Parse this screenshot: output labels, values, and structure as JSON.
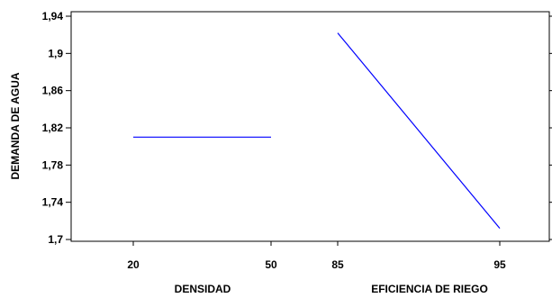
{
  "chart_data": {
    "type": "line",
    "ylabel": "DEMANDA DE AGUA",
    "ylim": [
      1.7,
      1.94
    ],
    "yticks": [
      "1,7",
      "1,74",
      "1,78",
      "1,82",
      "1,86",
      "1,9",
      "1,94"
    ],
    "ytick_values": [
      1.7,
      1.74,
      1.78,
      1.82,
      1.86,
      1.9,
      1.94
    ],
    "grid": false,
    "line_color": "#0000ff",
    "panels": [
      {
        "xlabel": "DENSIDAD",
        "xticks": [
          "20",
          "50"
        ],
        "series": [
          {
            "x": [
              20,
              50
            ],
            "y": [
              1.81,
              1.81
            ]
          }
        ]
      },
      {
        "xlabel": "EFICIENCIA DE RIEGO",
        "xticks": [
          "85",
          "95"
        ],
        "series": [
          {
            "x": [
              85,
              95
            ],
            "y": [
              1.922,
              1.712
            ]
          }
        ]
      }
    ]
  }
}
